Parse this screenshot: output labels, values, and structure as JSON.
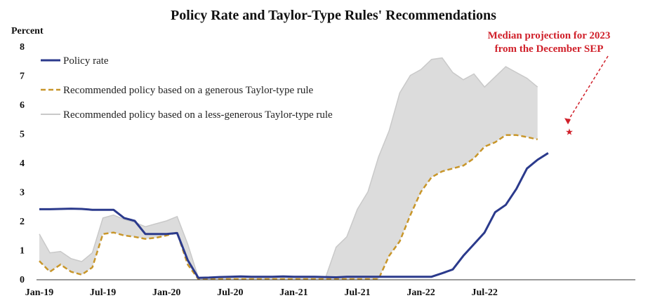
{
  "chart_data": {
    "type": "line",
    "title": "Policy Rate and Taylor-Type Rules' Recommendations",
    "ylabel": "Percent",
    "xlabel": "",
    "ylim": [
      0,
      8
    ],
    "yticks": [
      "0",
      "1",
      "2",
      "3",
      "4",
      "5",
      "6",
      "7",
      "8"
    ],
    "xticks": [
      "Jan-19",
      "Jul-19",
      "Jan-20",
      "Jul-20",
      "Jan-21",
      "Jul-21",
      "Jan-22",
      "Jul-22"
    ],
    "grid": false,
    "legend_placement": "top-left",
    "annotation": {
      "line1": "Median projection for 2023",
      "line2": "from the December SEP",
      "marker": "★",
      "x": "2023-03",
      "y": 5.1,
      "color": "#d0202a"
    },
    "series": [
      {
        "name": "Policy rate",
        "style": "solid",
        "color": "#2b3a8c",
        "x": [
          "2019-01",
          "2019-02",
          "2019-03",
          "2019-04",
          "2019-05",
          "2019-06",
          "2019-07",
          "2019-08",
          "2019-09",
          "2019-10",
          "2019-11",
          "2019-12",
          "2020-01",
          "2020-02",
          "2020-03",
          "2020-04",
          "2020-05",
          "2020-06",
          "2020-07",
          "2020-08",
          "2020-09",
          "2020-10",
          "2020-11",
          "2020-12",
          "2021-01",
          "2021-02",
          "2021-03",
          "2021-04",
          "2021-05",
          "2021-06",
          "2021-07",
          "2021-08",
          "2021-09",
          "2021-10",
          "2021-11",
          "2021-12",
          "2022-01",
          "2022-02",
          "2022-03",
          "2022-04",
          "2022-05",
          "2022-06",
          "2022-07",
          "2022-08",
          "2022-09",
          "2022-10",
          "2022-11",
          "2022-12",
          "2023-01"
        ],
        "values": [
          2.4,
          2.4,
          2.41,
          2.42,
          2.41,
          2.38,
          2.38,
          2.38,
          2.1,
          2.0,
          1.55,
          1.55,
          1.55,
          1.58,
          0.65,
          0.04,
          0.05,
          0.07,
          0.08,
          0.09,
          0.08,
          0.08,
          0.08,
          0.09,
          0.08,
          0.08,
          0.08,
          0.07,
          0.06,
          0.08,
          0.08,
          0.08,
          0.08,
          0.08,
          0.08,
          0.08,
          0.08,
          0.08,
          0.2,
          0.33,
          0.8,
          1.2,
          1.6,
          2.3,
          2.55,
          3.1,
          3.8,
          4.1,
          4.33
        ]
      },
      {
        "name": "Recommended policy based on a generous Taylor-type rule",
        "style": "dashed",
        "color": "#c8962a",
        "x": [
          "2019-01",
          "2019-02",
          "2019-03",
          "2019-04",
          "2019-05",
          "2019-06",
          "2019-07",
          "2019-08",
          "2019-09",
          "2019-10",
          "2019-11",
          "2019-12",
          "2020-01",
          "2020-02",
          "2020-03",
          "2020-04",
          "2020-05",
          "2020-06",
          "2020-07",
          "2020-08",
          "2020-09",
          "2020-10",
          "2020-11",
          "2020-12",
          "2021-01",
          "2021-02",
          "2021-03",
          "2021-04",
          "2021-05",
          "2021-06",
          "2021-07",
          "2021-08",
          "2021-09",
          "2021-10",
          "2021-11",
          "2021-12",
          "2022-01",
          "2022-02",
          "2022-03",
          "2022-04",
          "2022-05",
          "2022-06",
          "2022-07",
          "2022-08",
          "2022-09",
          "2022-10",
          "2022-11",
          "2022-12"
        ],
        "values": [
          0.62,
          0.25,
          0.5,
          0.25,
          0.15,
          0.4,
          1.55,
          1.6,
          1.5,
          1.45,
          1.38,
          1.42,
          1.5,
          1.6,
          0.5,
          0.0,
          0.0,
          0.0,
          0.0,
          0.0,
          0.0,
          0.0,
          0.0,
          0.0,
          0.0,
          0.0,
          0.0,
          0.0,
          0.0,
          0.0,
          0.0,
          0.0,
          0.0,
          0.8,
          1.3,
          2.2,
          3.0,
          3.5,
          3.7,
          3.8,
          3.9,
          4.15,
          4.55,
          4.7,
          4.95,
          4.95,
          4.88,
          4.8
        ]
      },
      {
        "name": "Recommended policy based on a less-generous Taylor-type rule",
        "style": "area",
        "color": "#dcdcdc",
        "x": [
          "2019-01",
          "2019-02",
          "2019-03",
          "2019-04",
          "2019-05",
          "2019-06",
          "2019-07",
          "2019-08",
          "2019-09",
          "2019-10",
          "2019-11",
          "2019-12",
          "2020-01",
          "2020-02",
          "2020-03",
          "2020-04",
          "2020-05",
          "2020-06",
          "2020-07",
          "2020-08",
          "2020-09",
          "2020-10",
          "2020-11",
          "2020-12",
          "2021-01",
          "2021-02",
          "2021-03",
          "2021-04",
          "2021-05",
          "2021-06",
          "2021-07",
          "2021-08",
          "2021-09",
          "2021-10",
          "2021-11",
          "2021-12",
          "2022-01",
          "2022-02",
          "2022-03",
          "2022-04",
          "2022-05",
          "2022-06",
          "2022-07",
          "2022-08",
          "2022-09",
          "2022-10",
          "2022-11",
          "2022-12"
        ],
        "values": [
          1.55,
          0.9,
          0.95,
          0.7,
          0.6,
          0.9,
          2.1,
          2.2,
          2.05,
          1.95,
          1.8,
          1.9,
          2.0,
          2.15,
          1.2,
          0.05,
          0.05,
          0.05,
          0.05,
          0.05,
          0.05,
          0.05,
          0.05,
          0.05,
          0.05,
          0.05,
          0.05,
          0.05,
          1.1,
          1.45,
          2.4,
          3.0,
          4.2,
          5.1,
          6.4,
          7.0,
          7.2,
          7.55,
          7.6,
          7.1,
          6.85,
          7.05,
          6.6,
          6.95,
          7.3,
          7.1,
          6.9,
          6.6
        ]
      }
    ]
  }
}
